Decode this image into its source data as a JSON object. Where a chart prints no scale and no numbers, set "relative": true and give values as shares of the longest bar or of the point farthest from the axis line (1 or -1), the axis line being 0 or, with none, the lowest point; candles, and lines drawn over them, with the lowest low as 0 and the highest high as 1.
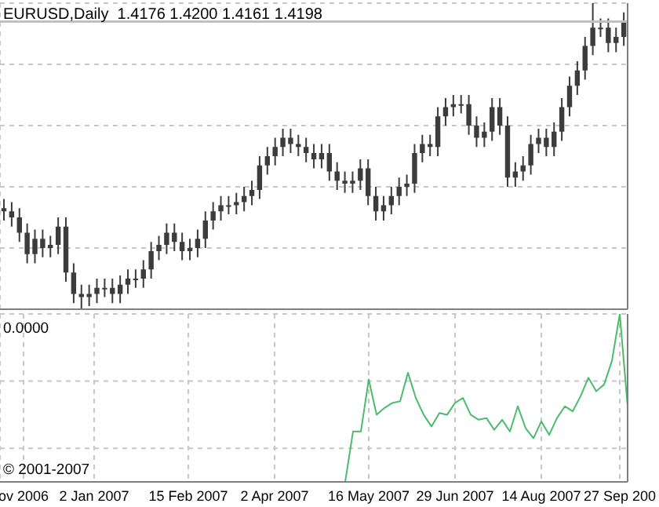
{
  "chart_data": [
    {
      "type": "candlestick",
      "title": "EURUSD,Daily  1.4176 1.4200 1.4161 1.4198",
      "relative": true,
      "grid": true,
      "tick_labels": false,
      "color": "#3c3c3c",
      "categories": [
        null,
        null,
        null,
        null,
        null,
        null,
        null,
        null,
        null,
        null,
        null,
        null,
        null,
        null,
        null,
        null,
        null,
        null,
        null,
        null,
        null,
        null,
        null,
        null,
        null,
        null,
        null,
        null,
        null,
        null,
        null,
        null,
        null,
        null,
        null,
        null,
        null,
        null,
        null,
        null,
        null,
        null,
        null,
        null,
        null,
        null,
        null,
        null,
        null,
        null,
        null,
        null,
        null,
        null,
        null,
        null,
        null,
        null,
        null,
        null,
        null,
        null,
        null,
        null,
        null,
        null,
        null,
        null,
        null,
        null,
        null,
        null,
        null,
        null,
        null,
        null,
        null,
        null,
        null,
        null,
        null
      ],
      "ohlc": [
        [
          0.33,
          0.36,
          0.29,
          0.32
        ],
        [
          0.32,
          0.35,
          0.27,
          0.3
        ],
        [
          0.3,
          0.33,
          0.22,
          0.25
        ],
        [
          0.25,
          0.28,
          0.15,
          0.18
        ],
        [
          0.18,
          0.26,
          0.15,
          0.23
        ],
        [
          0.23,
          0.26,
          0.17,
          0.2
        ],
        [
          0.2,
          0.24,
          0.17,
          0.21
        ],
        [
          0.21,
          0.3,
          0.18,
          0.27
        ],
        [
          0.27,
          0.3,
          0.09,
          0.12
        ],
        [
          0.12,
          0.15,
          0.02,
          0.05
        ],
        [
          0.05,
          0.08,
          0.0,
          0.04
        ],
        [
          0.04,
          0.08,
          0.01,
          0.05
        ],
        [
          0.05,
          0.1,
          0.02,
          0.07
        ],
        [
          0.07,
          0.1,
          0.04,
          0.07
        ],
        [
          0.07,
          0.1,
          0.02,
          0.05
        ],
        [
          0.05,
          0.11,
          0.02,
          0.08
        ],
        [
          0.08,
          0.13,
          0.05,
          0.1
        ],
        [
          0.1,
          0.13,
          0.07,
          0.1
        ],
        [
          0.1,
          0.16,
          0.07,
          0.13
        ],
        [
          0.13,
          0.22,
          0.1,
          0.19
        ],
        [
          0.19,
          0.24,
          0.16,
          0.21
        ],
        [
          0.21,
          0.28,
          0.18,
          0.25
        ],
        [
          0.25,
          0.28,
          0.19,
          0.22
        ],
        [
          0.22,
          0.25,
          0.16,
          0.19
        ],
        [
          0.19,
          0.23,
          0.16,
          0.2
        ],
        [
          0.2,
          0.26,
          0.17,
          0.23
        ],
        [
          0.23,
          0.32,
          0.2,
          0.29
        ],
        [
          0.29,
          0.35,
          0.26,
          0.32
        ],
        [
          0.32,
          0.37,
          0.29,
          0.34
        ],
        [
          0.34,
          0.37,
          0.31,
          0.34
        ],
        [
          0.34,
          0.38,
          0.31,
          0.35
        ],
        [
          0.35,
          0.4,
          0.32,
          0.37
        ],
        [
          0.37,
          0.42,
          0.34,
          0.39
        ],
        [
          0.39,
          0.5,
          0.36,
          0.47
        ],
        [
          0.47,
          0.53,
          0.44,
          0.5
        ],
        [
          0.5,
          0.56,
          0.47,
          0.53
        ],
        [
          0.53,
          0.59,
          0.5,
          0.56
        ],
        [
          0.56,
          0.59,
          0.51,
          0.54
        ],
        [
          0.54,
          0.57,
          0.5,
          0.53
        ],
        [
          0.53,
          0.56,
          0.48,
          0.51
        ],
        [
          0.51,
          0.54,
          0.46,
          0.49
        ],
        [
          0.49,
          0.54,
          0.46,
          0.51
        ],
        [
          0.51,
          0.54,
          0.42,
          0.45
        ],
        [
          0.45,
          0.48,
          0.39,
          0.42
        ],
        [
          0.42,
          0.45,
          0.38,
          0.41
        ],
        [
          0.41,
          0.45,
          0.38,
          0.42
        ],
        [
          0.42,
          0.49,
          0.39,
          0.46
        ],
        [
          0.46,
          0.49,
          0.34,
          0.37
        ],
        [
          0.37,
          0.4,
          0.29,
          0.32
        ],
        [
          0.32,
          0.37,
          0.29,
          0.34
        ],
        [
          0.34,
          0.4,
          0.31,
          0.37
        ],
        [
          0.37,
          0.43,
          0.34,
          0.4
        ],
        [
          0.4,
          0.44,
          0.37,
          0.41
        ],
        [
          0.41,
          0.54,
          0.38,
          0.51
        ],
        [
          0.51,
          0.57,
          0.48,
          0.54
        ],
        [
          0.54,
          0.57,
          0.5,
          0.53
        ],
        [
          0.53,
          0.66,
          0.5,
          0.63
        ],
        [
          0.63,
          0.69,
          0.6,
          0.66
        ],
        [
          0.66,
          0.7,
          0.63,
          0.67
        ],
        [
          0.67,
          0.7,
          0.64,
          0.67
        ],
        [
          0.67,
          0.7,
          0.57,
          0.6
        ],
        [
          0.6,
          0.63,
          0.53,
          0.56
        ],
        [
          0.56,
          0.61,
          0.53,
          0.58
        ],
        [
          0.58,
          0.69,
          0.55,
          0.66
        ],
        [
          0.66,
          0.69,
          0.57,
          0.6
        ],
        [
          0.6,
          0.63,
          0.4,
          0.43
        ],
        [
          0.43,
          0.48,
          0.4,
          0.45
        ],
        [
          0.45,
          0.5,
          0.42,
          0.47
        ],
        [
          0.47,
          0.57,
          0.44,
          0.54
        ],
        [
          0.54,
          0.59,
          0.51,
          0.56
        ],
        [
          0.56,
          0.59,
          0.5,
          0.53
        ],
        [
          0.53,
          0.61,
          0.5,
          0.58
        ],
        [
          0.58,
          0.69,
          0.55,
          0.66
        ],
        [
          0.66,
          0.76,
          0.63,
          0.73
        ],
        [
          0.73,
          0.81,
          0.7,
          0.78
        ],
        [
          0.78,
          0.89,
          0.75,
          0.86
        ],
        [
          0.86,
          1.0,
          0.83,
          0.92
        ],
        [
          0.92,
          0.95,
          0.89,
          0.92
        ],
        [
          0.92,
          0.95,
          0.84,
          0.87
        ],
        [
          0.87,
          0.92,
          0.84,
          0.89
        ],
        [
          0.89,
          0.97,
          0.86,
          0.94
        ]
      ],
      "ref_lines": [
        {
          "axis": "y",
          "value": 0.94,
          "color": "#c0c0c0"
        }
      ]
    },
    {
      "type": "line",
      "relative": true,
      "grid": true,
      "tick_labels": "x",
      "color": "#4cbb6c",
      "marker": "none",
      "annotations": [
        "0.0000",
        "© 2001-2007"
      ],
      "categories": [
        null,
        null,
        null,
        "ov 2006",
        null,
        null,
        null,
        null,
        null,
        null,
        null,
        null,
        "2 Jan 2007",
        null,
        null,
        null,
        null,
        null,
        null,
        null,
        null,
        null,
        null,
        null,
        "15 Feb 2007",
        null,
        null,
        null,
        null,
        null,
        null,
        null,
        null,
        null,
        null,
        "2 Apr 2007",
        null,
        null,
        null,
        null,
        null,
        null,
        null,
        null,
        null,
        null,
        null,
        "16 May 2007",
        null,
        null,
        null,
        null,
        null,
        null,
        null,
        null,
        null,
        null,
        "29 Jun 2007",
        null,
        null,
        null,
        null,
        null,
        null,
        null,
        null,
        null,
        null,
        "14 Aug 2007",
        null,
        null,
        null,
        null,
        null,
        null,
        null,
        null,
        null,
        "27 Sep 200",
        null
      ],
      "values": [
        null,
        null,
        null,
        null,
        null,
        null,
        null,
        null,
        null,
        null,
        null,
        null,
        null,
        null,
        null,
        null,
        null,
        null,
        null,
        null,
        null,
        null,
        null,
        null,
        null,
        null,
        null,
        null,
        null,
        null,
        null,
        null,
        null,
        null,
        null,
        null,
        null,
        null,
        null,
        null,
        null,
        null,
        null,
        null,
        0,
        0.3,
        0.3,
        0.61,
        0.4,
        0.44,
        0.47,
        0.48,
        0.65,
        0.5,
        0.4,
        0.33,
        0.41,
        0.4,
        0.47,
        0.5,
        0.4,
        0.37,
        0.38,
        0.31,
        0.37,
        0.3,
        0.45,
        0.32,
        0.26,
        0.36,
        0.28,
        0.38,
        0.45,
        0.42,
        0.51,
        0.62,
        0.54,
        0.58,
        0.72,
        1.0,
        0.45
      ]
    }
  ]
}
